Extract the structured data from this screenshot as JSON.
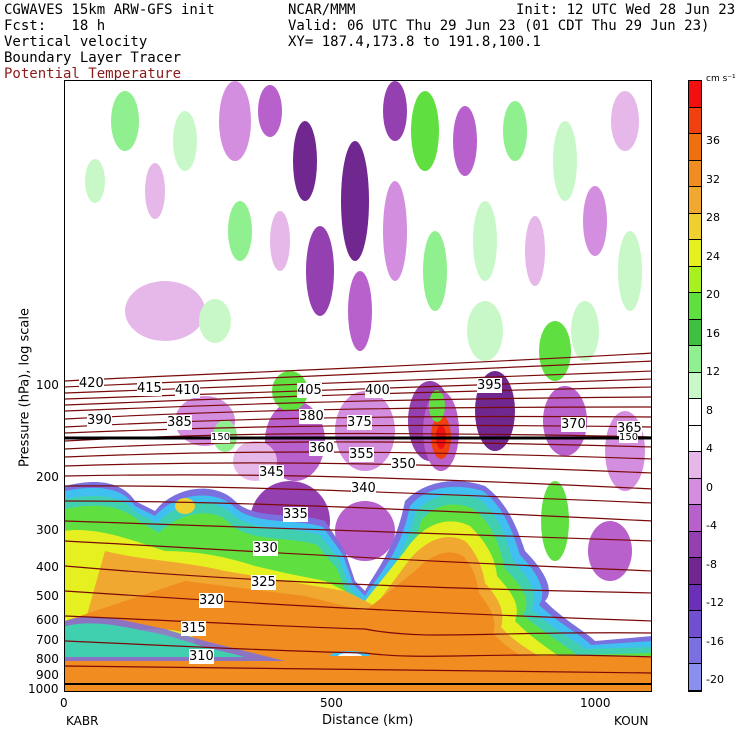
{
  "header": {
    "line1_left": "CGWAVES 15km ARW-GFS init",
    "line1_mid": "NCAR/MMM",
    "line1_right": "Init: 12 UTC Wed 28 Jun 23",
    "line2_left": "Fcst:   18 h",
    "line2_right": "Valid: 06 UTC Thu 29 Jun 23 (01 CDT Thu 29 Jun 23)",
    "line3_left": "Vertical velocity",
    "line3_right": "XY= 187.4,173.8 to 191.8,100.1",
    "line4_left": "Boundary Layer Tracer",
    "line5_left": "Potential Temperature"
  },
  "colors": {
    "theta_contour": "#7a0a0a",
    "header_theta": "#8b1a1a"
  },
  "axes": {
    "ylabel": "Pressure (hPa), log scale",
    "xlabel": "Distance (km)",
    "y_ticks": [
      "100",
      "200",
      "300",
      "400",
      "500",
      "600",
      "700",
      "800",
      "900",
      "1000"
    ],
    "x_ticks": [
      "0",
      "500",
      "1000"
    ],
    "x_start_label": "KABR",
    "x_end_label": "KOUN"
  },
  "colorbar": {
    "unit": "cm s⁻¹",
    "labels": [
      "36",
      "32",
      "28",
      "24",
      "20",
      "16",
      "12",
      "8",
      "4",
      "0",
      "-4",
      "-8",
      "-12",
      "-16",
      "-20"
    ],
    "colors": [
      "#f01010",
      "#f04010",
      "#f07010",
      "#f08c20",
      "#f0a830",
      "#f0d030",
      "#e6f020",
      "#a8f020",
      "#60e040",
      "#40c040",
      "#90f090",
      "#c8f8c8",
      "#ffffff",
      "#ffffff",
      "#e6b8ea",
      "#d48ee0",
      "#b860cc",
      "#9440b0",
      "#702890",
      "#6a30b8",
      "#7050d0",
      "#7a70e0",
      "#8a90ee"
    ]
  },
  "contours": {
    "theta_labels": [
      {
        "v": "420"
      },
      {
        "v": "415"
      },
      {
        "v": "410"
      },
      {
        "v": "405"
      },
      {
        "v": "400"
      },
      {
        "v": "395"
      },
      {
        "v": "390"
      },
      {
        "v": "385"
      },
      {
        "v": "380"
      },
      {
        "v": "375"
      },
      {
        "v": "370"
      },
      {
        "v": "365"
      },
      {
        "v": "360"
      },
      {
        "v": "355"
      },
      {
        "v": "350"
      },
      {
        "v": "345"
      },
      {
        "v": "340"
      },
      {
        "v": "335"
      },
      {
        "v": "330"
      },
      {
        "v": "325"
      },
      {
        "v": "320"
      },
      {
        "v": "315"
      },
      {
        "v": "310"
      }
    ],
    "tropopause_label": "150"
  }
}
